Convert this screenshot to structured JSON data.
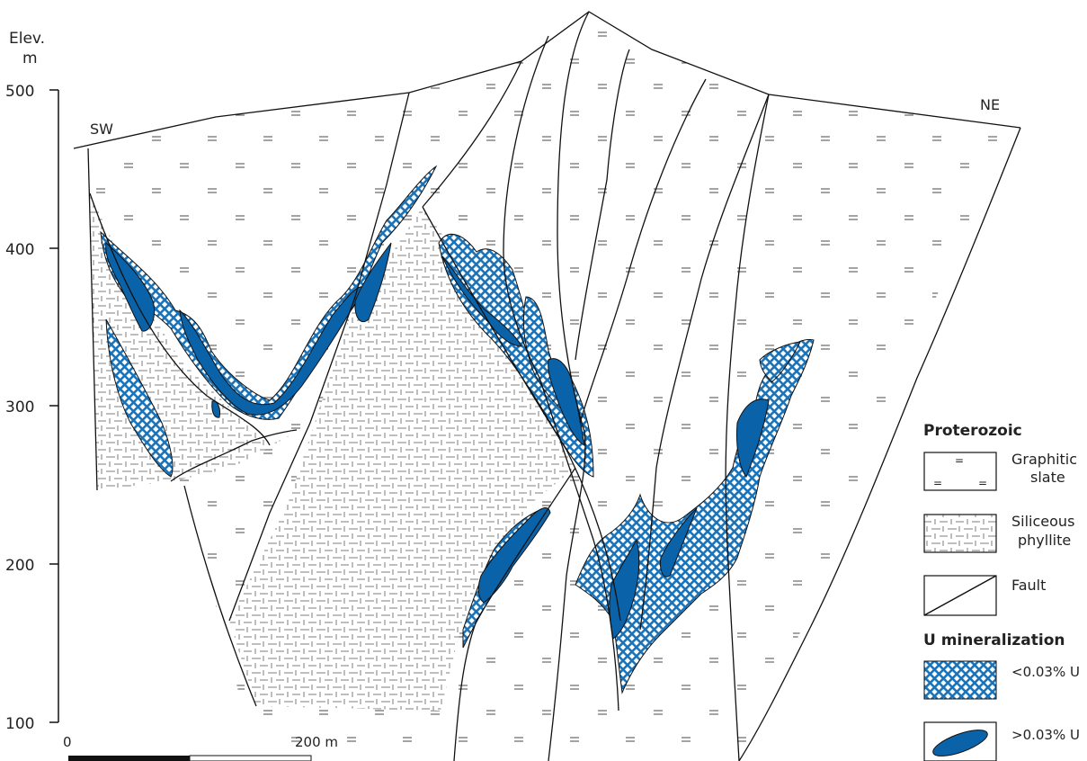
{
  "axis": {
    "title_line1": "Elev.",
    "title_line2": "m",
    "ticks": [
      {
        "value": 500,
        "label": "500"
      },
      {
        "value": 400,
        "label": "400"
      },
      {
        "value": 300,
        "label": "300"
      },
      {
        "value": 200,
        "label": "200"
      },
      {
        "value": 100,
        "label": "100"
      }
    ]
  },
  "section": {
    "left_label": "SW",
    "right_label": "NE"
  },
  "scale_bar": {
    "start_label": "0",
    "end_label": "200 m"
  },
  "legend": {
    "group1_title": "Proterozoic",
    "graphitic_slate_line1": "Graphitic",
    "graphitic_slate_line2": "slate",
    "siliceous_phyllite_line1": "Siliceous",
    "siliceous_phyllite_line2": "phyllite",
    "fault": "Fault",
    "group2_title": "U mineralization",
    "low_grade": "<0.03% U",
    "high_grade": ">0.03% U"
  },
  "colors": {
    "high_grade_fill": "#0a63a8",
    "low_grade_fill": "#1a73b8",
    "line": "#111111"
  },
  "pattern_symbol": "="
}
